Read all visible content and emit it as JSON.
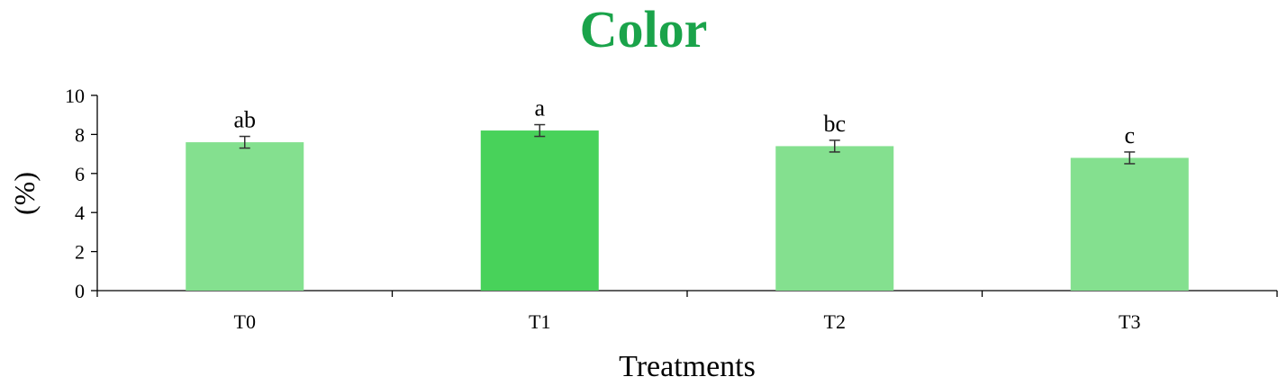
{
  "chart_data": {
    "type": "bar",
    "title": "Color",
    "xlabel": "Treatments",
    "ylabel": "(%)",
    "categories": [
      "T0",
      "T1",
      "T2",
      "T3"
    ],
    "values": [
      7.6,
      8.2,
      7.4,
      6.8
    ],
    "errors": [
      0.3,
      0.3,
      0.3,
      0.3
    ],
    "significance_labels": [
      "ab",
      "a",
      "bc",
      "c"
    ],
    "bar_colors": [
      "#84e08f",
      "#48d25a",
      "#84e08f",
      "#84e08f"
    ],
    "ylim": [
      0,
      10
    ],
    "yticks": [
      0,
      2,
      4,
      6,
      8,
      10
    ],
    "grid": false,
    "legend": "none",
    "title_color": "#1aa34a"
  }
}
